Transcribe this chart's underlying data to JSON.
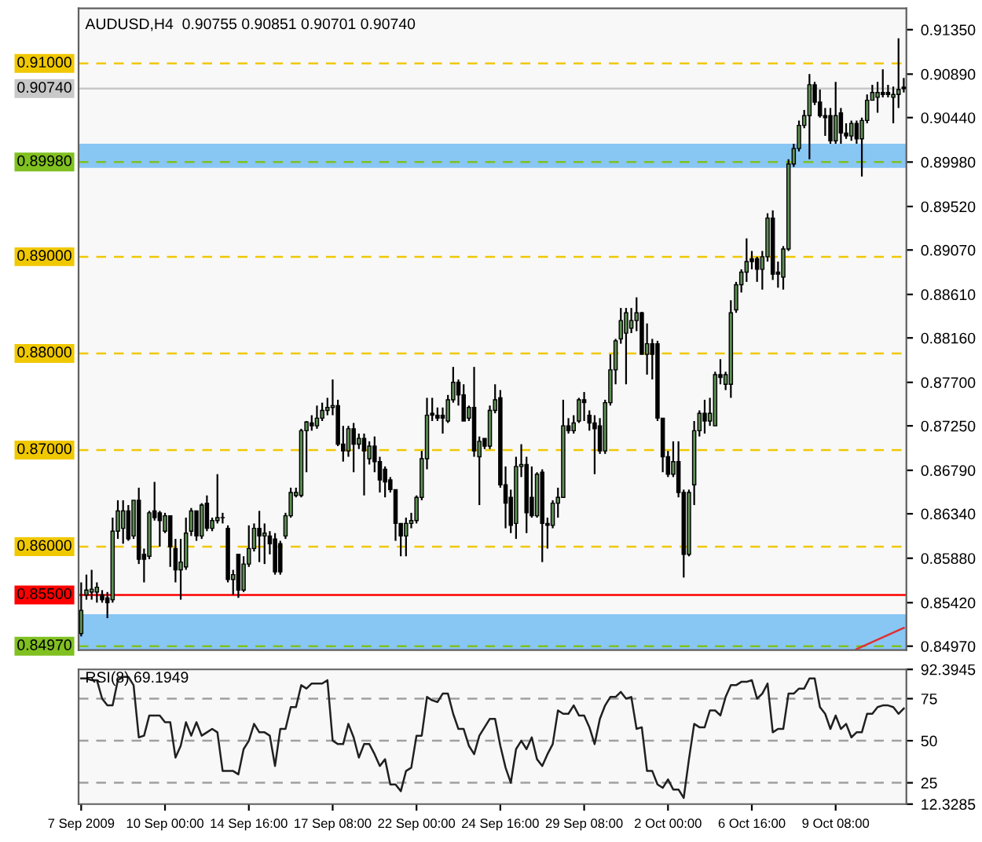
{
  "chart_data": [
    {
      "type": "candlestick",
      "title": "AUDUSD,H4  0.90755 0.90851 0.90701 0.90740",
      "categories": [
        null,
        null,
        null,
        null,
        null,
        null,
        null,
        null,
        null,
        null,
        null,
        null,
        null,
        null,
        null,
        null,
        null,
        null,
        null,
        null,
        null,
        null,
        null,
        null,
        null,
        null,
        null,
        null,
        null,
        null,
        null,
        null,
        null,
        null,
        null,
        null,
        null,
        null,
        null,
        null,
        null,
        null,
        null,
        null,
        null,
        null,
        null,
        null,
        null,
        null,
        null,
        null,
        null,
        null,
        null,
        null,
        null,
        null,
        null,
        null,
        null,
        null,
        null,
        null,
        null,
        null,
        null,
        null,
        null,
        null,
        null,
        null,
        null,
        null,
        null,
        null,
        null,
        null,
        null,
        null,
        null,
        null,
        null,
        null,
        null,
        null,
        null,
        null,
        null,
        null,
        null,
        null,
        null,
        null,
        null,
        null,
        null,
        null,
        null,
        null,
        null,
        null,
        null,
        null,
        null,
        null,
        null,
        null,
        null,
        null,
        null,
        null,
        null,
        null,
        null,
        null,
        null,
        null,
        null,
        null,
        null,
        null,
        null,
        null,
        null,
        null,
        null,
        null,
        null,
        null,
        null,
        null,
        null,
        null,
        null,
        null,
        null,
        null,
        null,
        null,
        null,
        null,
        null,
        null,
        null,
        null,
        null,
        null,
        null,
        null,
        null,
        null,
        null,
        null,
        null,
        null,
        null,
        null
      ],
      "ohlc": [
        [
          0.851,
          0.8563,
          0.8507,
          0.8534
        ],
        [
          0.855,
          0.8571,
          0.8545,
          0.8555
        ],
        [
          0.8553,
          0.8576,
          0.8545,
          0.8556
        ],
        [
          0.8553,
          0.8563,
          0.8542,
          0.8558
        ],
        [
          0.855,
          0.8555,
          0.8542,
          0.8545
        ],
        [
          0.8547,
          0.8553,
          0.8526,
          0.8542
        ],
        [
          0.8545,
          0.863,
          0.8542,
          0.8616
        ],
        [
          0.8616,
          0.8648,
          0.8608,
          0.8637
        ],
        [
          0.8619,
          0.8648,
          0.8603,
          0.8637
        ],
        [
          0.8637,
          0.8643,
          0.8606,
          0.8608
        ],
        [
          0.8611,
          0.8648,
          0.8608,
          0.8648
        ],
        [
          0.8648,
          0.8661,
          0.8582,
          0.8587
        ],
        [
          0.8592,
          0.8598,
          0.8563,
          0.8587
        ],
        [
          0.859,
          0.8637,
          0.8587,
          0.8635
        ],
        [
          0.8637,
          0.8667,
          0.8627,
          0.863
        ],
        [
          0.8635,
          0.8637,
          0.86,
          0.8627
        ],
        [
          0.8616,
          0.8635,
          0.8614,
          0.8632
        ],
        [
          0.8632,
          0.8632,
          0.8579,
          0.86
        ],
        [
          0.8598,
          0.8608,
          0.8563,
          0.8576
        ],
        [
          0.8576,
          0.8608,
          0.8545,
          0.8584
        ],
        [
          0.8579,
          0.863,
          0.8576,
          0.8614
        ],
        [
          0.8616,
          0.864,
          0.8611,
          0.8637
        ],
        [
          0.8637,
          0.8637,
          0.8606,
          0.8611
        ],
        [
          0.8611,
          0.8645,
          0.8608,
          0.8643
        ],
        [
          0.8645,
          0.8653,
          0.8616,
          0.8619
        ],
        [
          0.8619,
          0.863,
          0.8616,
          0.8627
        ],
        [
          0.8627,
          0.8675,
          0.8624,
          0.863
        ],
        [
          0.863,
          0.8635,
          0.8624,
          0.863
        ],
        [
          0.8619,
          0.8622,
          0.8563,
          0.8566
        ],
        [
          0.8566,
          0.8576,
          0.855,
          0.8571
        ],
        [
          0.8592,
          0.8592,
          0.8547,
          0.8555
        ],
        [
          0.8555,
          0.859,
          0.8553,
          0.8582
        ],
        [
          0.8582,
          0.8622,
          0.8579,
          0.8598
        ],
        [
          0.8598,
          0.8624,
          0.8595,
          0.8619
        ],
        [
          0.8619,
          0.8637,
          0.8584,
          0.8611
        ],
        [
          0.8611,
          0.8624,
          0.8582,
          0.8614
        ],
        [
          0.8611,
          0.8616,
          0.8592,
          0.8603
        ],
        [
          0.8608,
          0.8614,
          0.8571,
          0.8574
        ],
        [
          0.8603,
          0.8606,
          0.8571,
          0.8574
        ],
        [
          0.8611,
          0.8635,
          0.8608,
          0.8632
        ],
        [
          0.8632,
          0.8661,
          0.863,
          0.8656
        ],
        [
          0.8653,
          0.8661,
          0.8651,
          0.8656
        ],
        [
          0.8653,
          0.8722,
          0.8651,
          0.872
        ],
        [
          0.872,
          0.873,
          0.8677,
          0.8729
        ],
        [
          0.8728,
          0.8736,
          0.872,
          0.8725
        ],
        [
          0.8725,
          0.8746,
          0.8722,
          0.8733
        ],
        [
          0.8733,
          0.8749,
          0.873,
          0.8741
        ],
        [
          0.8741,
          0.8754,
          0.8736,
          0.8744
        ],
        [
          0.8744,
          0.8773,
          0.8736,
          0.8746
        ],
        [
          0.8746,
          0.8752,
          0.8704,
          0.8706
        ],
        [
          0.8706,
          0.8725,
          0.8688,
          0.8699
        ],
        [
          0.8699,
          0.8725,
          0.8693,
          0.8722
        ],
        [
          0.8722,
          0.8728,
          0.8677,
          0.8706
        ],
        [
          0.8706,
          0.8717,
          0.8701,
          0.8712
        ],
        [
          0.8712,
          0.8717,
          0.8653,
          0.8699
        ],
        [
          0.8691,
          0.8709,
          0.8685,
          0.8704
        ],
        [
          0.8704,
          0.8714,
          0.8677,
          0.8688
        ],
        [
          0.8688,
          0.8693,
          0.8656,
          0.8669
        ],
        [
          0.868,
          0.8683,
          0.8651,
          0.8667
        ],
        [
          0.8669,
          0.8672,
          0.8656,
          0.8659
        ],
        [
          0.8659,
          0.8659,
          0.8606,
          0.8624
        ],
        [
          0.8624,
          0.8624,
          0.859,
          0.8611
        ],
        [
          0.8611,
          0.863,
          0.859,
          0.8624
        ],
        [
          0.8624,
          0.8635,
          0.8619,
          0.8627
        ],
        [
          0.8627,
          0.8653,
          0.8624,
          0.8651
        ],
        [
          0.8651,
          0.8699,
          0.8648,
          0.8691
        ],
        [
          0.8691,
          0.8754,
          0.868,
          0.8736
        ],
        [
          0.8738,
          0.8754,
          0.873,
          0.8736
        ],
        [
          0.8736,
          0.8744,
          0.873,
          0.8733
        ],
        [
          0.8736,
          0.8744,
          0.8717,
          0.8733
        ],
        [
          0.873,
          0.8757,
          0.8728,
          0.8752
        ],
        [
          0.8752,
          0.8786,
          0.8749,
          0.877
        ],
        [
          0.877,
          0.8773,
          0.8746,
          0.8757
        ],
        [
          0.8757,
          0.8768,
          0.873,
          0.873
        ],
        [
          0.8733,
          0.8746,
          0.873,
          0.8744
        ],
        [
          0.8744,
          0.8786,
          0.8693,
          0.8699
        ],
        [
          0.8693,
          0.8714,
          0.8643,
          0.8709
        ],
        [
          0.8712,
          0.8712,
          0.8701,
          0.8704
        ],
        [
          0.8704,
          0.8746,
          0.8701,
          0.8741
        ],
        [
          0.8741,
          0.8768,
          0.8738,
          0.8752
        ],
        [
          0.8754,
          0.8762,
          0.8661,
          0.8664
        ],
        [
          0.8664,
          0.8683,
          0.8619,
          0.8645
        ],
        [
          0.8651,
          0.8659,
          0.8614,
          0.8622
        ],
        [
          0.8624,
          0.8693,
          0.8608,
          0.8683
        ],
        [
          0.8683,
          0.8706,
          0.8672,
          0.8685
        ],
        [
          0.8685,
          0.8693,
          0.8614,
          0.8635
        ],
        [
          0.8651,
          0.8683,
          0.863,
          0.8632
        ],
        [
          0.8632,
          0.8677,
          0.863,
          0.8675
        ],
        [
          0.8677,
          0.868,
          0.8584,
          0.8624
        ],
        [
          0.8624,
          0.863,
          0.8598,
          0.8622
        ],
        [
          0.8622,
          0.8648,
          0.8619,
          0.8645
        ],
        [
          0.8645,
          0.8661,
          0.863,
          0.8651
        ],
        [
          0.8651,
          0.8752,
          0.8651,
          0.8725
        ],
        [
          0.8725,
          0.8733,
          0.8717,
          0.872
        ],
        [
          0.872,
          0.8736,
          0.8717,
          0.8728
        ],
        [
          0.873,
          0.8754,
          0.8728,
          0.8752
        ],
        [
          0.8752,
          0.876,
          0.873,
          0.8749
        ],
        [
          0.8736,
          0.8741,
          0.872,
          0.8728
        ],
        [
          0.8728,
          0.8736,
          0.8675,
          0.8722
        ],
        [
          0.8725,
          0.8733,
          0.8696,
          0.8699
        ],
        [
          0.8699,
          0.8752,
          0.8696,
          0.8749
        ],
        [
          0.8749,
          0.8799,
          0.8746,
          0.8783
        ],
        [
          0.8783,
          0.8815,
          0.8768,
          0.8813
        ],
        [
          0.8815,
          0.8847,
          0.881,
          0.8834
        ],
        [
          0.8821,
          0.8847,
          0.8768,
          0.8842
        ],
        [
          0.8826,
          0.8847,
          0.8821,
          0.8834
        ],
        [
          0.8834,
          0.8858,
          0.8823,
          0.8842
        ],
        [
          0.8842,
          0.8843,
          0.8799,
          0.8799
        ],
        [
          0.8799,
          0.8831,
          0.8778,
          0.881
        ],
        [
          0.881,
          0.8815,
          0.8773,
          0.8799
        ],
        [
          0.881,
          0.8813,
          0.873,
          0.8733
        ],
        [
          0.8733,
          0.8733,
          0.8677,
          0.8693
        ],
        [
          0.8693,
          0.8699,
          0.8672,
          0.8675
        ],
        [
          0.8675,
          0.8709,
          0.8672,
          0.8688
        ],
        [
          0.8688,
          0.8709,
          0.8651,
          0.8656
        ],
        [
          0.8656,
          0.8659,
          0.8568,
          0.8592
        ],
        [
          0.8592,
          0.8659,
          0.859,
          0.8656
        ],
        [
          0.8664,
          0.873,
          0.8643,
          0.872
        ],
        [
          0.872,
          0.8741,
          0.8714,
          0.8738
        ],
        [
          0.8738,
          0.8752,
          0.8717,
          0.873
        ],
        [
          0.873,
          0.8754,
          0.8725,
          0.8738
        ],
        [
          0.8725,
          0.8781,
          0.8725,
          0.8778
        ],
        [
          0.8778,
          0.8794,
          0.8768,
          0.8775
        ],
        [
          0.8768,
          0.8781,
          0.8762,
          0.8778
        ],
        [
          0.8768,
          0.8855,
          0.8754,
          0.8842
        ],
        [
          0.8845,
          0.8874,
          0.8842,
          0.8871
        ],
        [
          0.8871,
          0.8887,
          0.8863,
          0.8884
        ],
        [
          0.8884,
          0.8919,
          0.8874,
          0.8895
        ],
        [
          0.8898,
          0.8906,
          0.8887,
          0.8895
        ],
        [
          0.8898,
          0.89,
          0.8874,
          0.8887
        ],
        [
          0.8887,
          0.8906,
          0.8866,
          0.89
        ],
        [
          0.89,
          0.8945,
          0.8895,
          0.894
        ],
        [
          0.894,
          0.8948,
          0.8876,
          0.8882
        ],
        [
          0.8884,
          0.8895,
          0.8868,
          0.8882
        ],
        [
          0.8879,
          0.8911,
          0.8866,
          0.8908
        ],
        [
          0.8908,
          0.9001,
          0.8906,
          0.8996
        ],
        [
          0.8996,
          0.9017,
          0.8993,
          0.9012
        ],
        [
          0.9012,
          0.9041,
          0.9009,
          0.9036
        ],
        [
          0.9036,
          0.9052,
          0.9033,
          0.9046
        ],
        [
          0.9046,
          0.9089,
          0.9001,
          0.9078
        ],
        [
          0.9078,
          0.9081,
          0.9057,
          0.906
        ],
        [
          0.906,
          0.9073,
          0.9044,
          0.9046
        ],
        [
          0.9046,
          0.9054,
          0.9025,
          0.9044
        ],
        [
          0.9046,
          0.9054,
          0.9017,
          0.902
        ],
        [
          0.902,
          0.9081,
          0.9017,
          0.9046
        ],
        [
          0.9049,
          0.9054,
          0.9017,
          0.9028
        ],
        [
          0.9028,
          0.9038,
          0.9022,
          0.9025
        ],
        [
          0.9025,
          0.9041,
          0.902,
          0.9038
        ],
        [
          0.9038,
          0.9041,
          0.9017,
          0.9022
        ],
        [
          0.9022,
          0.9044,
          0.8983,
          0.9041
        ],
        [
          0.9041,
          0.9068,
          0.9038,
          0.9062
        ],
        [
          0.9062,
          0.9078,
          0.9062,
          0.907
        ],
        [
          0.9065,
          0.9081,
          0.9049,
          0.907
        ],
        [
          0.907,
          0.9094,
          0.9065,
          0.9068
        ],
        [
          0.907,
          0.9078,
          0.9065,
          0.9068
        ],
        [
          0.9065,
          0.9076,
          0.9038,
          0.9068
        ],
        [
          0.9068,
          0.9126,
          0.9054,
          0.9073
        ],
        [
          0.90755,
          0.90851,
          0.90701,
          0.9074
        ]
      ],
      "colors": [
        "#5f8f55",
        "#5f8f55",
        "#5f8f55",
        "#5f8f55",
        "#000000",
        "#000000",
        "#5f8f55",
        "#5f8f55",
        "#5f8f55",
        "#000000",
        "#5f8f55",
        "#000000",
        "#000000",
        "#5f8f55",
        "#000000",
        "#000000",
        "#5f8f55",
        "#000000",
        "#000000",
        "#5f8f55",
        "#5f8f55",
        "#5f8f55",
        "#000000",
        "#5f8f55",
        "#000000",
        "#5f8f55",
        "#5f8f55",
        "#5f8f55",
        "#000000",
        "#5f8f55",
        "#000000",
        "#5f8f55",
        "#5f8f55",
        "#5f8f55",
        "#000000",
        "#5f8f55",
        "#000000",
        "#000000",
        "#000000",
        "#5f8f55",
        "#5f8f55",
        "#5f8f55",
        "#5f8f55",
        "#5f8f55",
        "#000000",
        "#5f8f55",
        "#5f8f55",
        "#5f8f55",
        "#5f8f55",
        "#000000",
        "#000000",
        "#5f8f55",
        "#000000",
        "#5f8f55",
        "#000000",
        "#5f8f55",
        "#000000",
        "#000000",
        "#000000",
        "#000000",
        "#000000",
        "#000000",
        "#5f8f55",
        "#5f8f55",
        "#5f8f55",
        "#5f8f55",
        "#5f8f55",
        "#000000",
        "#000000",
        "#000000",
        "#5f8f55",
        "#5f8f55",
        "#000000",
        "#000000",
        "#5f8f55",
        "#000000",
        "#5f8f55",
        "#000000",
        "#5f8f55",
        "#5f8f55",
        "#000000",
        "#000000",
        "#000000",
        "#5f8f55",
        "#5f8f55",
        "#000000",
        "#000000",
        "#5f8f55",
        "#000000",
        "#000000",
        "#5f8f55",
        "#5f8f55",
        "#5f8f55",
        "#000000",
        "#5f8f55",
        "#5f8f55",
        "#000000",
        "#000000",
        "#000000",
        "#000000",
        "#5f8f55",
        "#5f8f55",
        "#5f8f55",
        "#5f8f55",
        "#5f8f55",
        "#5f8f55",
        "#5f8f55",
        "#000000",
        "#5f8f55",
        "#000000",
        "#000000",
        "#000000",
        "#000000",
        "#5f8f55",
        "#000000",
        "#000000",
        "#5f8f55",
        "#5f8f55",
        "#5f8f55",
        "#000000",
        "#5f8f55",
        "#5f8f55",
        "#000000",
        "#5f8f55",
        "#5f8f55",
        "#5f8f55",
        "#5f8f55",
        "#5f8f55",
        "#000000",
        "#000000",
        "#5f8f55",
        "#5f8f55",
        "#000000",
        "#000000",
        "#5f8f55",
        "#5f8f55",
        "#5f8f55",
        "#5f8f55",
        "#5f8f55",
        "#5f8f55",
        "#000000",
        "#000000",
        "#000000",
        "#000000",
        "#5f8f55",
        "#000000",
        "#000000",
        "#5f8f55",
        "#000000",
        "#5f8f55",
        "#5f8f55",
        "#5f8f55",
        "#5f8f55",
        "#000000",
        "#000000",
        "#5f8f55",
        "#5f8f55",
        "#000000"
      ],
      "ylim": [
        0.8493,
        0.9157
      ],
      "yticks": [
        {
          "value": 0.9135,
          "label": "0.91350"
        },
        {
          "value": 0.9089,
          "label": "0.90890"
        },
        {
          "value": 0.9044,
          "label": "0.90440"
        },
        {
          "value": 0.8998,
          "label": "0.89980"
        },
        {
          "value": 0.8952,
          "label": "0.89520"
        },
        {
          "value": 0.8907,
          "label": "0.89070"
        },
        {
          "value": 0.8861,
          "label": "0.88610"
        },
        {
          "value": 0.8816,
          "label": "0.88160"
        },
        {
          "value": 0.877,
          "label": "0.87700"
        },
        {
          "value": 0.8725,
          "label": "0.87250"
        },
        {
          "value": 0.8679,
          "label": "0.86790"
        },
        {
          "value": 0.8634,
          "label": "0.86340"
        },
        {
          "value": 0.8588,
          "label": "0.85880"
        },
        {
          "value": 0.8542,
          "label": "0.85420"
        },
        {
          "value": 0.8497,
          "label": "0.84970"
        }
      ],
      "tick_labels": "y",
      "bands": [
        {
          "axis": "y",
          "from": 0.8992,
          "to": 0.9017,
          "color": "#88c6f4"
        },
        {
          "axis": "y",
          "from": 0.8493,
          "to": 0.853,
          "color": "#88c6f4"
        }
      ],
      "ref_lines": [
        {
          "axis": "y",
          "value": 0.91,
          "label": "0.91000",
          "color": "#f0c800",
          "line_style": "dashed"
        },
        {
          "axis": "y",
          "value": 0.9074,
          "label": "0.90740",
          "color": "#c8c8c8",
          "line_style": "solid"
        },
        {
          "axis": "y",
          "value": 0.8998,
          "label": "0.89980",
          "color": "#80c020",
          "line_style": "dashed"
        },
        {
          "axis": "y",
          "value": 0.89,
          "label": "0.89000",
          "color": "#f0c800",
          "line_style": "dashed"
        },
        {
          "axis": "y",
          "value": 0.88,
          "label": "0.88000",
          "color": "#f0c800",
          "line_style": "dashed"
        },
        {
          "axis": "y",
          "value": 0.87,
          "label": "0.87000",
          "color": "#f0c800",
          "line_style": "dashed"
        },
        {
          "axis": "y",
          "value": 0.86,
          "label": "0.86000",
          "color": "#f0c800",
          "line_style": "dashed"
        },
        {
          "axis": "y",
          "value": 0.855,
          "label": "0.85500",
          "color": "#ff0000",
          "line_style": "solid"
        },
        {
          "axis": "y",
          "value": 0.8497,
          "label": "0.84970",
          "color": "#80c020",
          "line_style": "dashed"
        }
      ],
      "series": [
        {
          "type": "line",
          "color": "#e03030",
          "values": [
            null,
            null,
            null,
            null,
            null,
            null,
            null,
            null,
            null,
            null,
            null,
            null,
            null,
            null,
            null,
            null,
            null,
            null,
            null,
            null,
            null,
            null,
            null,
            null,
            null,
            null,
            null,
            null,
            null,
            null,
            null,
            null,
            null,
            null,
            null,
            null,
            null,
            null,
            null,
            null,
            null,
            null,
            null,
            null,
            null,
            null,
            null,
            null,
            null,
            null,
            null,
            null,
            null,
            null,
            null,
            null,
            null,
            null,
            null,
            null,
            null,
            null,
            null,
            null,
            null,
            null,
            null,
            null,
            null,
            null,
            null,
            null,
            null,
            null,
            null,
            null,
            null,
            null,
            null,
            null,
            null,
            null,
            null,
            null,
            null,
            null,
            null,
            null,
            null,
            null,
            null,
            null,
            null,
            null,
            null,
            null,
            null,
            null,
            null,
            null,
            null,
            null,
            null,
            null,
            null,
            null,
            null,
            null,
            null,
            null,
            null,
            null,
            null,
            null,
            null,
            null,
            null,
            null,
            null,
            null,
            null,
            null,
            null,
            null,
            null,
            null,
            null,
            null,
            null,
            null,
            null,
            null,
            null,
            null,
            null,
            null,
            null,
            null,
            null,
            null,
            null,
            null,
            null,
            null,
            null,
            null,
            null,
            null,
            0.8494,
            null,
            null,
            null,
            null,
            null,
            null,
            null,
            null,
            0.8516
          ]
        }
      ]
    },
    {
      "type": "line",
      "title": "RSI(8) 69.1949",
      "categories": [
        "7 Sep 2009",
        null,
        null,
        null,
        null,
        null,
        null,
        null,
        null,
        null,
        null,
        null,
        null,
        null,
        null,
        null,
        "10 Sep 00:00",
        null,
        null,
        null,
        null,
        null,
        null,
        null,
        null,
        null,
        null,
        null,
        null,
        null,
        null,
        null,
        "14 Sep 16:00",
        null,
        null,
        null,
        null,
        null,
        null,
        null,
        null,
        null,
        null,
        null,
        null,
        null,
        null,
        null,
        "17 Sep 08:00",
        null,
        null,
        null,
        null,
        null,
        null,
        null,
        null,
        null,
        null,
        null,
        null,
        null,
        null,
        null,
        "22 Sep 00:00",
        null,
        null,
        null,
        null,
        null,
        null,
        null,
        null,
        null,
        null,
        null,
        null,
        null,
        null,
        null,
        "24 Sep 16:00",
        null,
        null,
        null,
        null,
        null,
        null,
        null,
        null,
        null,
        null,
        null,
        null,
        null,
        null,
        null,
        "29 Sep 08:00",
        null,
        null,
        null,
        null,
        null,
        null,
        null,
        null,
        null,
        null,
        null,
        null,
        null,
        null,
        null,
        "2 Oct 00:00",
        null,
        null,
        null,
        null,
        null,
        null,
        null,
        null,
        null,
        null,
        null,
        null,
        null,
        null,
        null,
        "6 Oct 16:00",
        null,
        null,
        null,
        null,
        null,
        null,
        null,
        null,
        null,
        null,
        null,
        null,
        null,
        null,
        null,
        "9 Oct 08:00",
        null,
        null,
        null,
        null,
        null,
        null,
        null,
        null,
        null,
        null,
        null,
        null,
        null
      ],
      "series": [
        {
          "color": "#202020",
          "values": [
            87,
            87,
            86,
            86,
            75,
            71,
            71,
            86,
            88,
            88,
            83,
            52,
            53,
            65,
            65,
            65,
            61,
            61,
            40,
            47,
            61,
            53,
            61,
            53,
            55,
            57,
            55,
            32,
            32,
            32,
            30,
            45,
            50,
            60,
            55,
            55,
            53,
            35,
            57,
            57,
            70,
            70,
            83,
            81,
            84,
            84,
            84,
            86,
            50,
            48,
            48,
            60,
            52,
            40,
            48,
            48,
            42,
            35,
            39,
            24,
            24,
            20,
            32,
            34,
            53,
            53,
            76,
            74,
            73,
            78,
            78,
            66,
            57,
            57,
            47,
            42,
            53,
            58,
            63,
            63,
            47,
            34,
            25,
            45,
            50,
            45,
            52,
            39,
            35,
            42,
            48,
            68,
            66,
            66,
            71,
            65,
            65,
            58,
            48,
            63,
            71,
            76,
            76,
            79,
            75,
            76,
            57,
            58,
            32,
            32,
            24,
            22,
            27,
            21,
            21,
            16,
            39,
            60,
            58,
            58,
            68,
            68,
            65,
            76,
            83,
            83,
            85,
            85,
            86,
            75,
            78,
            84,
            55,
            57,
            57,
            78,
            78,
            81,
            81,
            87,
            87,
            70,
            66,
            57,
            65,
            57,
            60,
            52,
            55,
            55,
            66,
            66,
            70,
            71,
            71,
            70,
            66,
            69.1949
          ]
        }
      ],
      "ylim": [
        12.3285,
        92.3945
      ],
      "yticks": [
        92.3945,
        75,
        50,
        25,
        12.3285
      ],
      "ref_lines": [
        {
          "axis": "y",
          "value": 75,
          "color": "#a0a0a0",
          "line_style": "dashed"
        },
        {
          "axis": "y",
          "value": 50,
          "color": "#a0a0a0",
          "line_style": "dashed"
        },
        {
          "axis": "y",
          "value": 25,
          "color": "#a0a0a0",
          "line_style": "dashed"
        }
      ]
    }
  ]
}
